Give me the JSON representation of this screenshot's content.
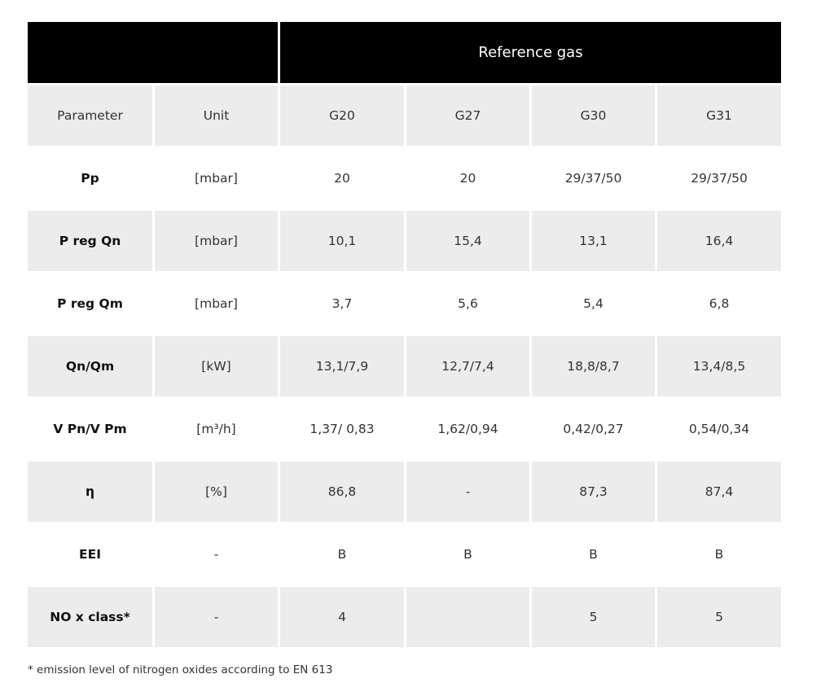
{
  "header": {
    "reference_gas": "Reference gas"
  },
  "columns": [
    "Parameter",
    "Unit",
    "G20",
    "G27",
    "G30",
    "G31"
  ],
  "rows": [
    {
      "parameter": "Pp",
      "unit": "[mbar]",
      "values": [
        "20",
        "20",
        "29/37/50",
        "29/37/50"
      ]
    },
    {
      "parameter": "P reg Qn",
      "unit": "[mbar]",
      "values": [
        "10,1",
        "15,4",
        "13,1",
        "16,4"
      ]
    },
    {
      "parameter": "P reg Qm",
      "unit": "[mbar]",
      "values": [
        "3,7",
        "5,6",
        "5,4",
        "6,8"
      ]
    },
    {
      "parameter": "Qn/Qm",
      "unit": "[kW]",
      "values": [
        "13,1/7,9",
        "12,7/7,4",
        "18,8/8,7",
        "13,4/8,5"
      ]
    },
    {
      "parameter": "V Pn/V Pm",
      "unit": "[m³/h]",
      "values": [
        "1,37/  0,83",
        "1,62/0,94",
        "0,42/0,27",
        "0,54/0,34"
      ]
    },
    {
      "parameter": "η",
      "unit": "[%]",
      "values": [
        "86,8",
        "-",
        "87,3",
        "87,4"
      ]
    },
    {
      "parameter": "EEI",
      "unit": "-",
      "values": [
        "B",
        "B",
        "B",
        "B"
      ]
    },
    {
      "parameter": "NO x class*",
      "unit": "-",
      "values": [
        "4",
        "",
        "5",
        "5"
      ]
    }
  ],
  "footnote": "* emission level of nitrogen oxides according to EN 613"
}
